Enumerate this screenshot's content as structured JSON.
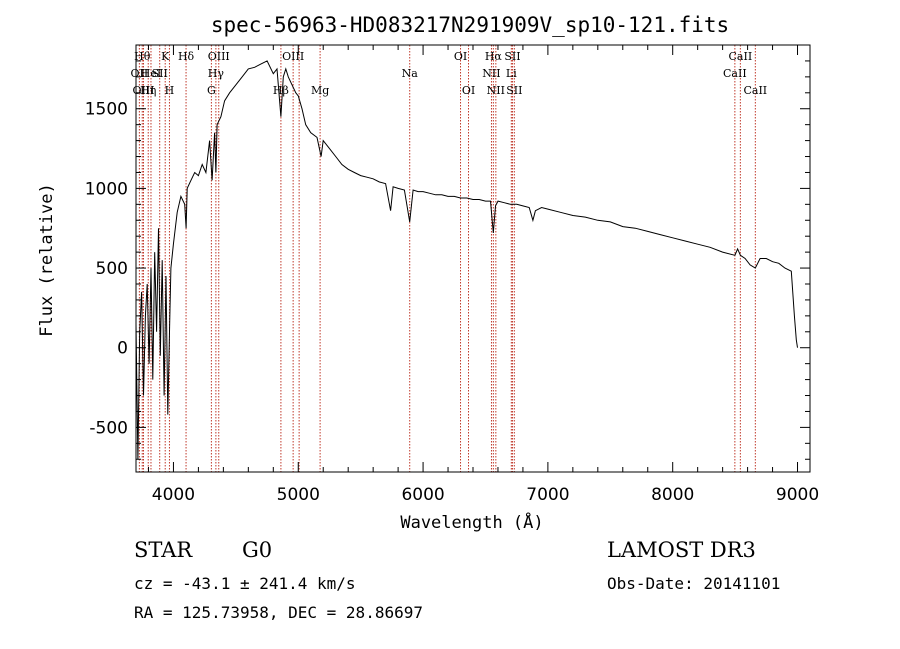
{
  "chart_data": {
    "type": "line",
    "title": "spec-56963-HD083217N291909V_sp10-121.fits",
    "xlabel": "Wavelength (Å)",
    "ylabel": "Flux (relative)",
    "xlim": [
      3700,
      9100
    ],
    "ylim": [
      -780,
      1900
    ],
    "xticks": [
      4000,
      5000,
      6000,
      7000,
      8000,
      9000
    ],
    "yticks": [
      -500,
      0,
      500,
      1000,
      1500
    ],
    "series": [
      {
        "x": [
          3700,
          3715,
          3730,
          3745,
          3760,
          3775,
          3790,
          3805,
          3820,
          3835,
          3850,
          3865,
          3880,
          3895,
          3910,
          3925,
          3940,
          3955,
          3968,
          3980,
          4000,
          4030,
          4060,
          4090,
          4101,
          4110,
          4140,
          4170,
          4200,
          4230,
          4260,
          4290,
          4310,
          4330,
          4340,
          4350,
          4380,
          4410,
          4450,
          4500,
          4550,
          4600,
          4650,
          4700,
          4750,
          4800,
          4830,
          4861,
          4880,
          4900,
          4920,
          4950,
          4980,
          5000,
          5030,
          5060,
          5100,
          5150,
          5183,
          5200,
          5250,
          5300,
          5350,
          5400,
          5450,
          5500,
          5550,
          5600,
          5650,
          5700,
          5740,
          5760,
          5800,
          5850,
          5893,
          5920,
          5960,
          6000,
          6050,
          6100,
          6150,
          6200,
          6250,
          6300,
          6350,
          6400,
          6450,
          6500,
          6540,
          6563,
          6580,
          6600,
          6650,
          6700,
          6750,
          6800,
          6850,
          6880,
          6900,
          6950,
          7000,
          7100,
          7200,
          7300,
          7400,
          7500,
          7600,
          7700,
          7800,
          7900,
          8000,
          8100,
          8200,
          8300,
          8400,
          8498,
          8520,
          8542,
          8580,
          8620,
          8662,
          8700,
          8750,
          8800,
          8850,
          8900,
          8950,
          8975,
          8990,
          9000
        ],
        "values": [
          150,
          -700,
          100,
          350,
          -300,
          200,
          400,
          -100,
          500,
          -200,
          600,
          100,
          750,
          -50,
          550,
          -300,
          450,
          -420,
          100,
          500,
          650,
          850,
          950,
          900,
          750,
          1000,
          1050,
          1100,
          1080,
          1150,
          1100,
          1300,
          1050,
          1350,
          1100,
          1400,
          1450,
          1550,
          1600,
          1650,
          1700,
          1750,
          1760,
          1780,
          1800,
          1720,
          1750,
          1450,
          1700,
          1750,
          1700,
          1650,
          1600,
          1580,
          1500,
          1400,
          1350,
          1320,
          1200,
          1300,
          1250,
          1200,
          1150,
          1120,
          1100,
          1080,
          1070,
          1060,
          1040,
          1030,
          860,
          1010,
          1000,
          990,
          790,
          990,
          980,
          980,
          970,
          960,
          960,
          950,
          950,
          940,
          940,
          930,
          930,
          920,
          920,
          720,
          890,
          920,
          910,
          900,
          900,
          890,
          880,
          800,
          860,
          880,
          870,
          850,
          830,
          820,
          800,
          790,
          760,
          750,
          730,
          710,
          690,
          670,
          650,
          630,
          600,
          580,
          620,
          580,
          560,
          520,
          500,
          560,
          560,
          540,
          530,
          500,
          480,
          200,
          50,
          0
        ]
      }
    ],
    "lines": [
      {
        "wl": 3727,
        "label": "OII",
        "row": 1
      },
      {
        "wl": 3750,
        "label": "Hθ",
        "row": 0
      },
      {
        "wl": 3760,
        "label": "OIII",
        "row": 2
      },
      {
        "wl": 3798,
        "label": "Hη",
        "row": 2
      },
      {
        "wl": 3820,
        "label": "HeI",
        "row": 1
      },
      {
        "wl": 3890,
        "label": "SII",
        "row": 1
      },
      {
        "wl": 3934,
        "label": "K",
        "row": 0
      },
      {
        "wl": 3968,
        "label": "H",
        "row": 2
      },
      {
        "wl": 4101,
        "label": "Hδ",
        "row": 0
      },
      {
        "wl": 4304,
        "label": "G",
        "row": 2
      },
      {
        "wl": 4340,
        "label": "Hγ",
        "row": 1
      },
      {
        "wl": 4363,
        "label": "OIII",
        "row": 0
      },
      {
        "wl": 4861,
        "label": "Hβ",
        "row": 2
      },
      {
        "wl": 4959,
        "label": "OIII",
        "row": 0
      },
      {
        "wl": 5007,
        "label": "",
        "row": 0
      },
      {
        "wl": 5175,
        "label": "Mg",
        "row": 2
      },
      {
        "wl": 5893,
        "label": "Na",
        "row": 1
      },
      {
        "wl": 6300,
        "label": "OI",
        "row": 0
      },
      {
        "wl": 6364,
        "label": "OI",
        "row": 2
      },
      {
        "wl": 6548,
        "label": "NII",
        "row": 1
      },
      {
        "wl": 6563,
        "label": "Hα",
        "row": 0
      },
      {
        "wl": 6583,
        "label": "NII",
        "row": 2
      },
      {
        "wl": 6707,
        "label": "Li",
        "row": 1
      },
      {
        "wl": 6716,
        "label": "SII",
        "row": 0
      },
      {
        "wl": 6731,
        "label": "SII",
        "row": 2
      },
      {
        "wl": 8498,
        "label": "CaII",
        "row": 1
      },
      {
        "wl": 8542,
        "label": "CaII",
        "row": 0
      },
      {
        "wl": 8662,
        "label": "CaII",
        "row": 2
      }
    ]
  },
  "info": {
    "object_class": "STAR",
    "subclass": "G0",
    "survey": "LAMOST DR3",
    "cz": "cz = -43.1 ± 241.4 km/s",
    "obs_date": "Obs-Date: 20141101",
    "coords": "RA = 125.73958, DEC =  28.86697"
  },
  "colors": {
    "spectrum": "#000000",
    "line_marker": "#c0392b",
    "axis": "#000000",
    "background": "#ffffff"
  }
}
